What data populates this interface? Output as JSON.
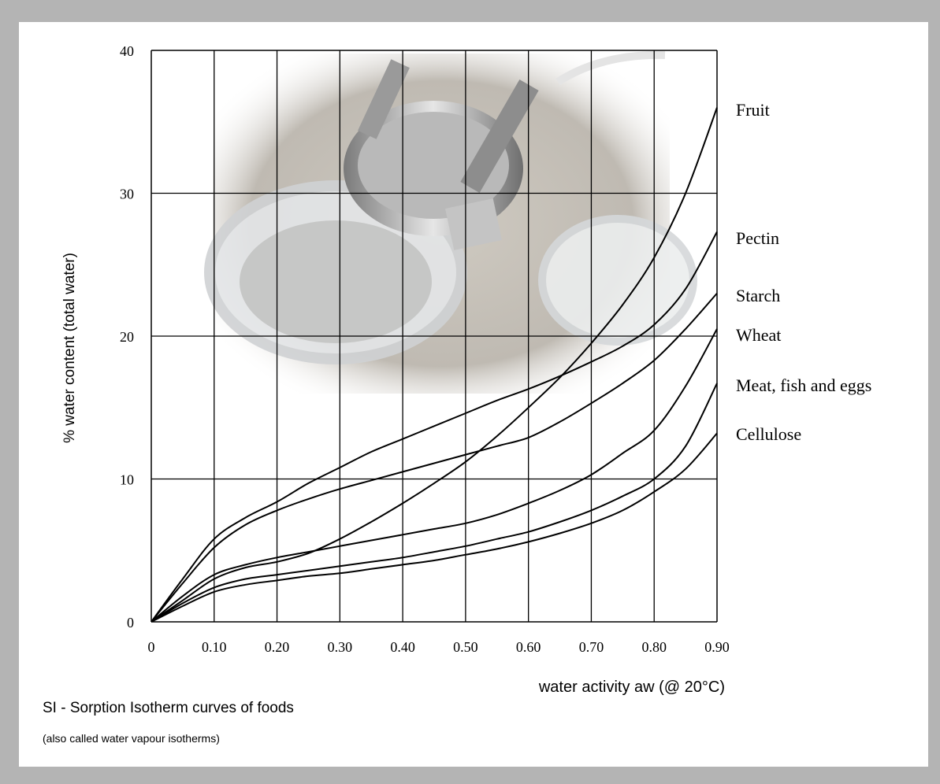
{
  "chart_data": {
    "type": "line",
    "xlabel": "water activity aw (@ 20°C)",
    "ylabel": "% water content (total water)",
    "xlim": [
      0,
      0.9
    ],
    "ylim": [
      0,
      40
    ],
    "grid": true,
    "x_ticks": [
      "0",
      "0.10",
      "0.20",
      "0.30",
      "0.40",
      "0.50",
      "0.60",
      "0.70",
      "0.80",
      "0.90"
    ],
    "y_ticks": [
      "0",
      "10",
      "20",
      "30",
      "40"
    ],
    "x": [
      0,
      0.05,
      0.1,
      0.15,
      0.2,
      0.25,
      0.3,
      0.35,
      0.4,
      0.45,
      0.5,
      0.55,
      0.6,
      0.65,
      0.7,
      0.75,
      0.8,
      0.85,
      0.9
    ],
    "series": [
      {
        "name": "Fruit",
        "values": [
          0,
          1.5,
          3,
          3.8,
          4.2,
          4.8,
          5.8,
          7,
          8.3,
          9.7,
          11.2,
          13,
          15,
          17.1,
          19.5,
          22.2,
          25.5,
          30,
          36
        ]
      },
      {
        "name": "Pectin",
        "values": [
          0,
          3,
          5.8,
          7.3,
          8.4,
          9.7,
          10.8,
          11.9,
          12.8,
          13.7,
          14.6,
          15.5,
          16.3,
          17.2,
          18.2,
          19.3,
          20.8,
          23.3,
          27.3
        ]
      },
      {
        "name": "Starch",
        "values": [
          0,
          2.7,
          5.2,
          6.8,
          7.8,
          8.6,
          9.3,
          9.9,
          10.5,
          11.1,
          11.7,
          12.3,
          12.9,
          14,
          15.3,
          16.7,
          18.3,
          20.5,
          23
        ]
      },
      {
        "name": "Wheat",
        "values": [
          0,
          1.8,
          3.3,
          4,
          4.5,
          4.9,
          5.3,
          5.7,
          6.1,
          6.5,
          6.9,
          7.5,
          8.3,
          9.2,
          10.3,
          11.8,
          13.4,
          16.5,
          20.5
        ]
      },
      {
        "name": "Meat, fish and eggs",
        "values": [
          0,
          1.3,
          2.4,
          3,
          3.3,
          3.6,
          3.9,
          4.2,
          4.5,
          4.9,
          5.3,
          5.8,
          6.3,
          7,
          7.8,
          8.8,
          10,
          12.3,
          16.7
        ]
      },
      {
        "name": "Cellulose",
        "values": [
          0,
          1.1,
          2.1,
          2.6,
          2.9,
          3.2,
          3.4,
          3.7,
          4,
          4.3,
          4.7,
          5.1,
          5.6,
          6.2,
          6.9,
          7.8,
          9.1,
          10.7,
          13.2
        ]
      }
    ]
  },
  "caption": {
    "title": "SI - Sorption Isotherm curves of foods",
    "subtitle": "(also called water vapour isotherms)"
  }
}
